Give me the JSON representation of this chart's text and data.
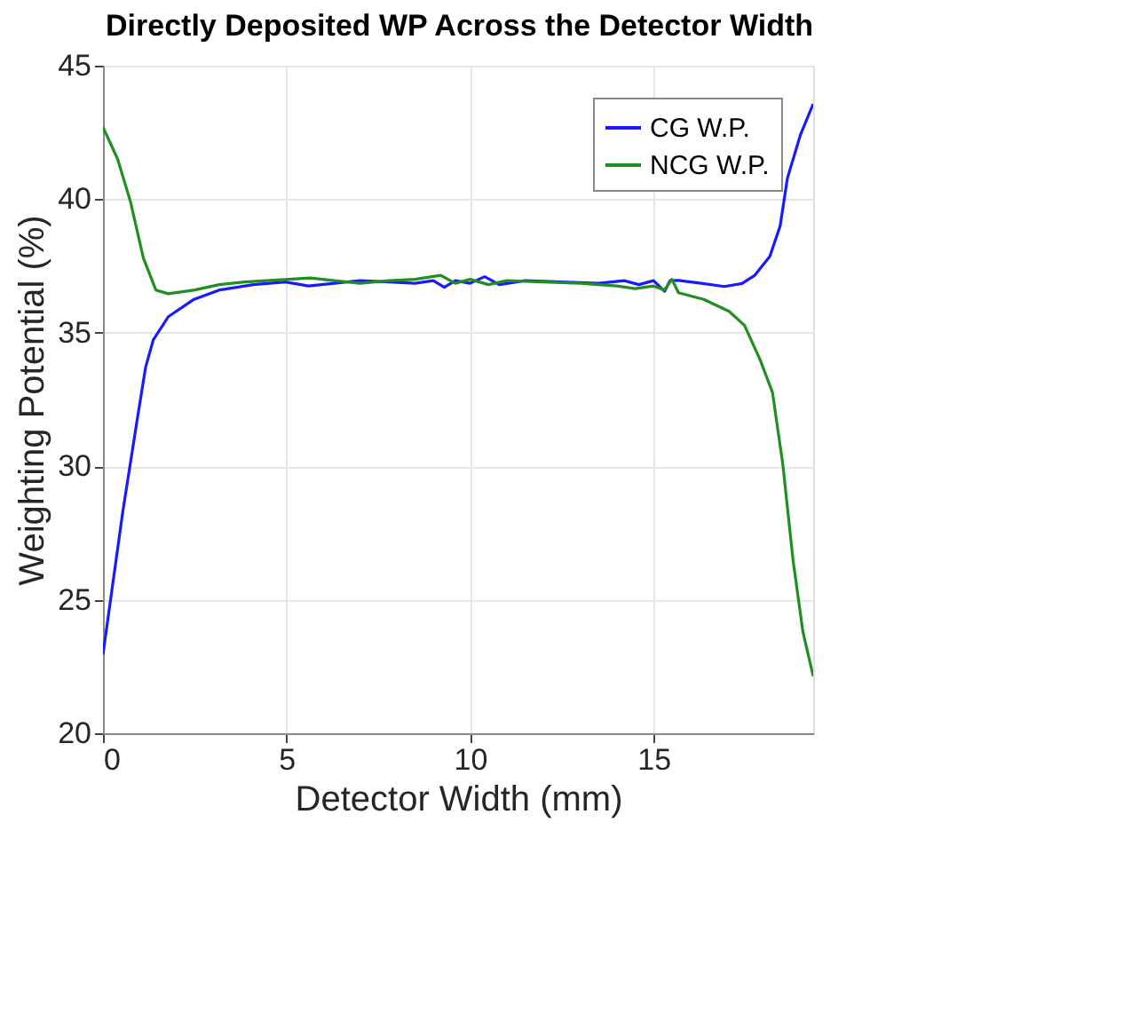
{
  "chart_data": {
    "type": "line",
    "title": "Directly Deposited WP Across the Detector Width",
    "xlabel": "Detector Width (mm)",
    "ylabel": "Weighting Potential (%)",
    "xlim": [
      0,
      19.35
    ],
    "xticks": [
      0,
      5,
      10,
      15
    ],
    "ylim": [
      20,
      45
    ],
    "yticks": [
      20,
      25,
      30,
      35,
      40,
      45
    ],
    "grid": true,
    "legend": "top right",
    "line_style": "solid",
    "marker": "none",
    "series": [
      {
        "name": "CG W.P.",
        "color": "#1a1aff",
        "x": [
          0,
          0.54,
          0.95,
          1.16,
          1.37,
          1.78,
          2.48,
          3.17,
          4.1,
          4.97,
          5.6,
          6.3,
          7,
          7.8,
          8.5,
          9.0,
          9.3,
          9.6,
          10.0,
          10.4,
          10.8,
          11.5,
          12.5,
          13.5,
          14.2,
          14.6,
          15.0,
          15.3,
          15.45,
          15.68,
          16.3,
          16.93,
          17.41,
          17.75,
          18.17,
          18.45,
          18.65,
          19.0,
          19.35
        ],
        "values": [
          22.95,
          28.3,
          31.9,
          33.7,
          34.73,
          35.6,
          36.25,
          36.6,
          36.8,
          36.9,
          36.75,
          36.85,
          36.95,
          36.9,
          36.85,
          36.95,
          36.7,
          36.95,
          36.85,
          37.1,
          36.8,
          36.95,
          36.9,
          36.85,
          36.95,
          36.8,
          36.95,
          36.55,
          36.95,
          36.96,
          36.85,
          36.73,
          36.84,
          37.14,
          37.86,
          39.0,
          40.8,
          42.4,
          43.57
        ]
      },
      {
        "name": "NCG W.P.",
        "color": "#1f8f1f",
        "x": [
          0,
          0.4,
          0.75,
          1.1,
          1.44,
          1.78,
          2.5,
          3.17,
          3.86,
          4.55,
          5.65,
          6.3,
          7,
          7.8,
          8.5,
          9.2,
          9.6,
          10.0,
          10.5,
          11,
          12,
          13,
          14,
          14.5,
          15.0,
          15.3,
          15.5,
          15.68,
          16.37,
          17.06,
          17.48,
          17.9,
          18.24,
          18.52,
          18.8,
          19.07,
          19.35
        ],
        "values": [
          42.7,
          41.5,
          39.9,
          37.8,
          36.6,
          36.46,
          36.6,
          36.8,
          36.9,
          36.96,
          37.05,
          36.95,
          36.85,
          36.95,
          37.0,
          37.15,
          36.85,
          37.0,
          36.8,
          36.95,
          36.9,
          36.85,
          36.75,
          36.65,
          36.75,
          36.6,
          37.0,
          36.5,
          36.25,
          35.8,
          35.27,
          34.0,
          32.77,
          30.1,
          26.5,
          23.8,
          22.14
        ]
      }
    ]
  }
}
